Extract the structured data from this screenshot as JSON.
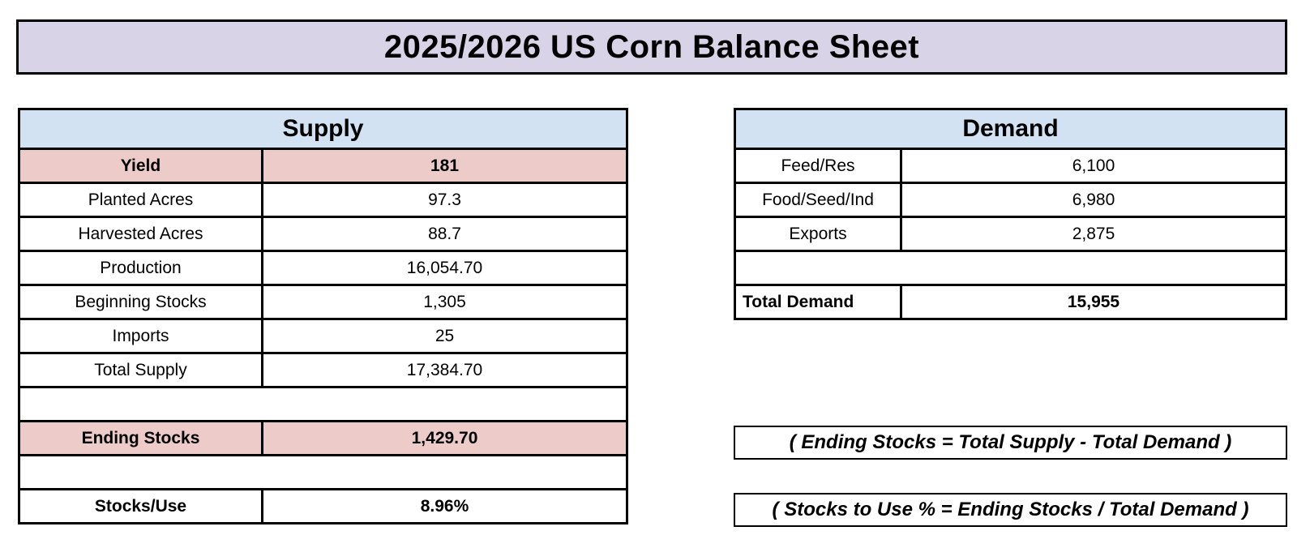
{
  "title": "2025/2026 US Corn Balance Sheet",
  "colors": {
    "title_bg": "#d8d3e6",
    "table_header_bg": "#d3e2f3",
    "highlight_row_bg": "#eccbc9",
    "border": "#000000"
  },
  "supply_table": {
    "header": "Supply",
    "rows": [
      {
        "label": "Yield",
        "value": "181",
        "bold": true,
        "highlight": true
      },
      {
        "label": "Planted Acres",
        "value": "97.3"
      },
      {
        "label": "Harvested Acres",
        "value": "88.7"
      },
      {
        "label": "Production",
        "value": "16,054.70"
      },
      {
        "label": "Beginning Stocks",
        "value": "1,305"
      },
      {
        "label": "Imports",
        "value": "25"
      },
      {
        "label": "Total Supply",
        "value": "17,384.70"
      },
      {
        "spacer": true
      },
      {
        "label": "Ending Stocks",
        "value": "1,429.70",
        "bold": true,
        "highlight": true
      },
      {
        "spacer": true
      },
      {
        "label": "Stocks/Use",
        "value": "8.96%",
        "bold": true
      }
    ]
  },
  "demand_table": {
    "header": "Demand",
    "rows": [
      {
        "label": "Feed/Res",
        "value": "6,100"
      },
      {
        "label": "Food/Seed/Ind",
        "value": "6,980"
      },
      {
        "label": "Exports",
        "value": "2,875"
      },
      {
        "spacer": true
      },
      {
        "label": "Total Demand",
        "value": "15,955",
        "bold": true,
        "label_align": "left"
      }
    ]
  },
  "notes": [
    {
      "text": "( Ending Stocks = Total Supply - Total Demand )"
    },
    {
      "text": "( Stocks to Use % = Ending Stocks / Total Demand )"
    }
  ]
}
